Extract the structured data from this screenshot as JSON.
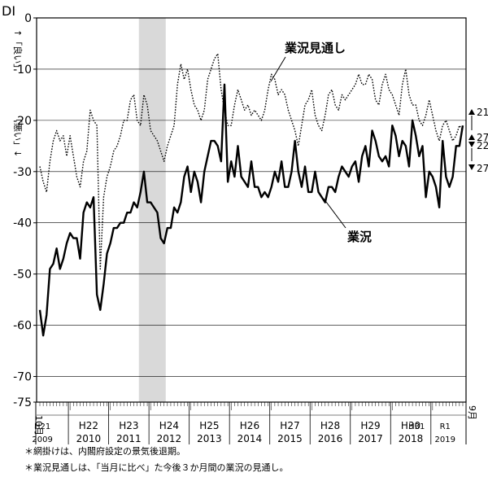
{
  "chart_data": {
    "type": "line",
    "ylabel": "DI",
    "y_axis_notes": {
      "up": "「良い」",
      "down": "「悪い」"
    },
    "ylim": [
      -75,
      0
    ],
    "y_ticks": [
      0,
      -10,
      -20,
      -30,
      -40,
      -50,
      -60,
      -70,
      -75
    ],
    "x_range_months": {
      "start": "2009-10",
      "end": "2019-09"
    },
    "x_start_label": "10月",
    "x_end_label": "9月",
    "x_year_labels": [
      {
        "era": "H21",
        "year": "2009"
      },
      {
        "era": "H22",
        "year": "2010"
      },
      {
        "era": "H23",
        "year": "2011"
      },
      {
        "era": "H24",
        "year": "2012"
      },
      {
        "era": "H25",
        "year": "2013"
      },
      {
        "era": "H26",
        "year": "2014"
      },
      {
        "era": "H27",
        "year": "2015"
      },
      {
        "era": "H28",
        "year": "2016"
      },
      {
        "era": "H29",
        "year": "2017"
      },
      {
        "era": "H30",
        "year": "2018"
      },
      {
        "era": "H31",
        "year": ""
      },
      {
        "era": "R1",
        "year": "2019"
      }
    ],
    "shaded_recession": {
      "start": "2012-04",
      "end": "2012-11"
    },
    "series": [
      {
        "name": "業況",
        "style": "solid",
        "values": [
          -57,
          -62,
          -58,
          -49,
          -48,
          -45,
          -49,
          -47,
          -44,
          -42,
          -43,
          -43,
          -47,
          -38,
          -36,
          -37,
          -35,
          -54,
          -57,
          -52,
          -46,
          -44,
          -41,
          -41,
          -40,
          -40,
          -38,
          -38,
          -36,
          -37,
          -34,
          -30,
          -36,
          -36,
          -37,
          -38,
          -43,
          -44,
          -41,
          -41,
          -37,
          -38,
          -36,
          -31,
          -29,
          -34,
          -30,
          -32,
          -36,
          -30,
          -27,
          -24,
          -24,
          -25,
          -28,
          -13,
          -32,
          -28,
          -31,
          -25,
          -31,
          -32,
          -33,
          -28,
          -33,
          -33,
          -35,
          -34,
          -35,
          -33,
          -30,
          -32,
          -28,
          -33,
          -33,
          -30,
          -24,
          -30,
          -33,
          -29,
          -34,
          -34,
          -30,
          -34,
          -35,
          -36,
          -33,
          -33,
          -34,
          -31,
          -29,
          -30,
          -31,
          -29,
          -28,
          -32,
          -27,
          -25,
          -29,
          -22,
          -24,
          -27,
          -28,
          -27,
          -29,
          -21,
          -23,
          -27,
          -24,
          -25,
          -29,
          -20,
          -23,
          -27,
          -25,
          -35,
          -30,
          -31,
          -33,
          -37,
          -24,
          -31,
          -33,
          -31,
          -25,
          -25,
          -21
        ]
      },
      {
        "name": "業況見通し",
        "style": "dotted",
        "values": [
          -29,
          -32,
          -34,
          -28,
          -24,
          -22,
          -24,
          -23,
          -27,
          -23,
          -27,
          -31,
          -33,
          -28,
          -26,
          -18,
          -20,
          -21,
          -49,
          -35,
          -31,
          -29,
          -26,
          -25,
          -23,
          -20,
          -20,
          -16,
          -15,
          -20,
          -21,
          -15,
          -17,
          -22,
          -23,
          -24,
          -26,
          -28,
          -25,
          -23,
          -21,
          -13,
          -9,
          -12,
          -10,
          -14,
          -17,
          -18,
          -20,
          -18,
          -12,
          -10,
          -8,
          -7,
          -14,
          -18,
          -21,
          -21,
          -17,
          -14,
          -16,
          -18,
          -17,
          -19,
          -18,
          -19,
          -20,
          -18,
          -14,
          -11,
          -12,
          -15,
          -14,
          -15,
          -18,
          -20,
          -22,
          -25,
          -21,
          -17,
          -16,
          -14,
          -19,
          -21,
          -22,
          -19,
          -15,
          -14,
          -17,
          -18,
          -15,
          -16,
          -15,
          -14,
          -13,
          -11,
          -13,
          -13,
          -11,
          -12,
          -16,
          -17,
          -13,
          -11,
          -14,
          -15,
          -17,
          -19,
          -13,
          -10,
          -15,
          -17,
          -17,
          -20,
          -21,
          -19,
          -16,
          -19,
          -22,
          -24,
          -21,
          -20,
          -22,
          -24,
          -23,
          -21,
          -22
        ]
      }
    ],
    "series_labels": {
      "forecast": "業況見通し",
      "actual": "業況"
    },
    "end_annotations": [
      {
        "text": "21",
        "y": -21,
        "arrow": "up"
      },
      {
        "text": "27",
        "y": -27,
        "arrow": "up"
      },
      {
        "text": "22",
        "y": -22,
        "arrow": "down"
      },
      {
        "text": "27",
        "y": -27,
        "arrow": "down"
      }
    ]
  },
  "footnotes": [
    "＊網掛けは、内閣府設定の景気後退期。",
    "＊業況見通しは、「当月に比べ」た今後３か月間の業況の見通し。"
  ]
}
